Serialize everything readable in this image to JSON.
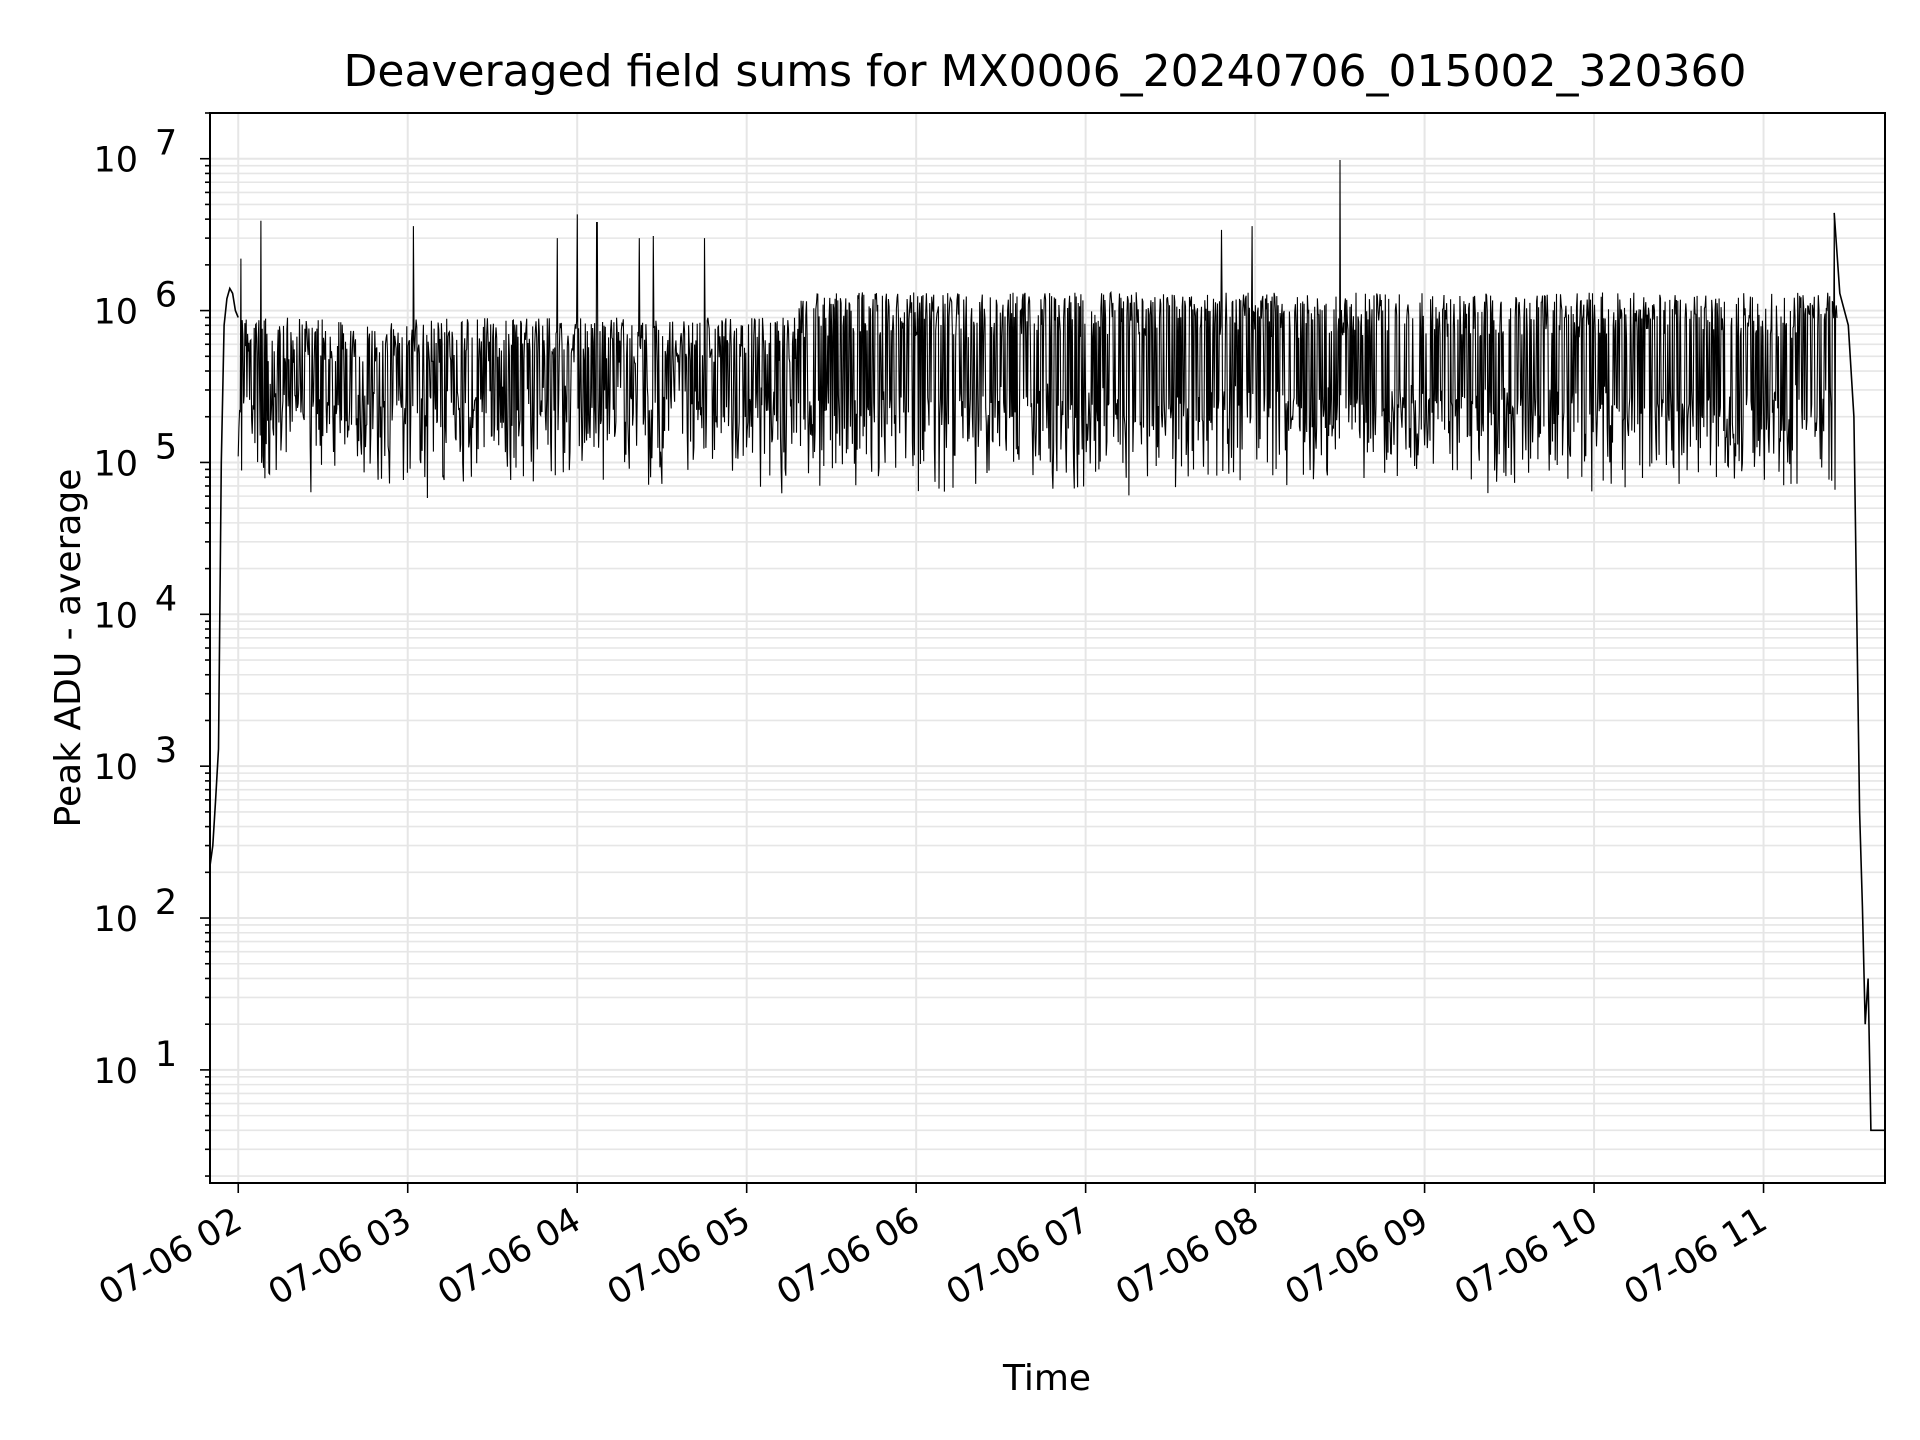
{
  "chart_data": {
    "type": "line",
    "title": "Deaveraged field sums for MX0006_20240706_015002_320360",
    "xlabel": "Time",
    "ylabel": "Peak ADU - average",
    "yscale": "log",
    "ylim": [
      1.8,
      20000000
    ],
    "xlim": [
      "07-06 01:50",
      "07-06 11:43"
    ],
    "grid": true,
    "x_ticks": [
      "07-06 02",
      "07-06 03",
      "07-06 04",
      "07-06 05",
      "07-06 06",
      "07-06 07",
      "07-06 08",
      "07-06 09",
      "07-06 10",
      "07-06 11"
    ],
    "y_ticks": [
      {
        "base": "10",
        "exp": "1",
        "value": 10
      },
      {
        "base": "10",
        "exp": "2",
        "value": 100
      },
      {
        "base": "10",
        "exp": "3",
        "value": 1000
      },
      {
        "base": "10",
        "exp": "4",
        "value": 10000
      },
      {
        "base": "10",
        "exp": "5",
        "value": 100000
      },
      {
        "base": "10",
        "exp": "6",
        "value": 1000000
      },
      {
        "base": "10",
        "exp": "7",
        "value": 10000000
      }
    ],
    "line_color": "#000000",
    "grid_color": "#e6e6e6",
    "series": [
      {
        "points": [
          [
            "07-06 01:50",
            220
          ],
          [
            "07-06 01:51",
            300
          ],
          [
            "07-06 01:52",
            600
          ],
          [
            "07-06 01:53",
            1300
          ],
          [
            "07-06 01:54",
            100000
          ],
          [
            "07-06 01:55",
            800000
          ],
          [
            "07-06 01:56",
            1200000
          ],
          [
            "07-06 01:57",
            1400000
          ],
          [
            "07-06 01:58",
            1300000
          ],
          [
            "07-06 01:59",
            1000000
          ],
          [
            "07-06 02:00",
            900000
          ],
          [
            "07-06 02:01",
            2200000
          ],
          [
            "07-06 02:08",
            3900000
          ],
          [
            "07-06 03:02",
            3600000
          ],
          [
            "07-06 03:53",
            3000000
          ],
          [
            "07-06 04:00",
            4300000
          ],
          [
            "07-06 04:07",
            3800000
          ],
          [
            "07-06 04:22",
            3000000
          ],
          [
            "07-06 04:27",
            3100000
          ],
          [
            "07-06 04:45",
            3000000
          ],
          [
            "07-06 07:48",
            3400000
          ],
          [
            "07-06 07:59",
            3600000
          ],
          [
            "07-06 08:30",
            9800000
          ],
          [
            "07-06 11:25",
            4400000
          ],
          [
            "07-06 11:27",
            1300000
          ],
          [
            "07-06 11:30",
            800000
          ],
          [
            "07-06 11:32",
            200000
          ],
          [
            "07-06 11:34",
            500
          ],
          [
            "07-06 11:35",
            120
          ],
          [
            "07-06 11:36",
            20
          ],
          [
            "07-06 11:37",
            40
          ],
          [
            "07-06 11:38",
            4
          ],
          [
            "07-06 11:43",
            4
          ]
        ],
        "band_upper": 1000000,
        "band_lower": 80000
      }
    ]
  }
}
